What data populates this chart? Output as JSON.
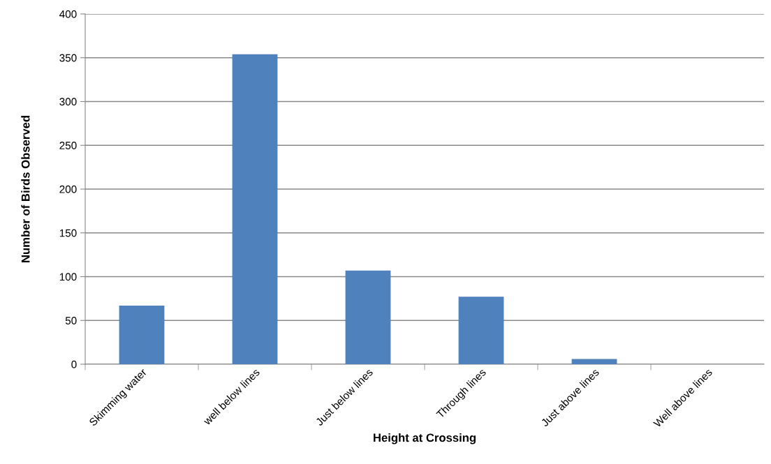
{
  "chart_data": {
    "type": "bar",
    "xlabel": "Height at Crossing",
    "ylabel": "Number of Birds Observed",
    "categories": [
      "Skimming water",
      "well below lines",
      "Just below lines",
      "Through lines",
      "Just above lines",
      "Well above lines"
    ],
    "values": [
      67,
      354,
      107,
      77,
      6,
      0
    ],
    "color": "#4f81bd",
    "ylim": [
      0,
      400
    ],
    "yticks": [
      0,
      50,
      100,
      150,
      200,
      250,
      300,
      350,
      400
    ],
    "grid": "y",
    "legend": false
  }
}
